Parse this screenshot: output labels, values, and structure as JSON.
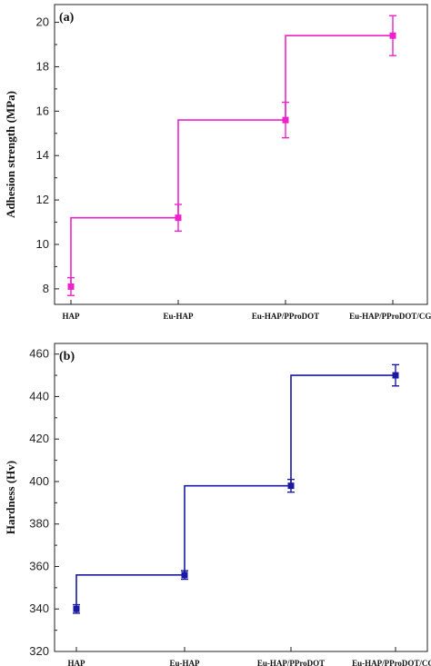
{
  "chart_data": [
    {
      "type": "line",
      "step": "post",
      "panel_label": "(a)",
      "ylabel": "Adhesion strength (MPa)",
      "categories": [
        "HAP",
        "Eu-HAP",
        "Eu-HAP/PProDOT",
        "Eu-HAP/PProDOT/CGF"
      ],
      "values": [
        8.1,
        11.2,
        15.6,
        19.4
      ],
      "errors": [
        0.4,
        0.6,
        0.8,
        0.9
      ],
      "ylim": [
        7.3,
        20.8
      ],
      "yticks": [
        8,
        10,
        12,
        14,
        16,
        18,
        20
      ],
      "color": "#ee22cc",
      "marker": "square"
    },
    {
      "type": "line",
      "step": "post",
      "panel_label": "(b)",
      "ylabel": "Hardness (Hv)",
      "categories": [
        "HAP",
        "Eu-HAP",
        "Eu-HAP/PProDOT",
        "Eu-HAP/PProDOT/CGF"
      ],
      "values": [
        340,
        356,
        398,
        450
      ],
      "errors": [
        2,
        2,
        3,
        5
      ],
      "ylim": [
        320,
        465
      ],
      "yticks": [
        320,
        340,
        360,
        380,
        400,
        420,
        440,
        460
      ],
      "color": "#1a1aa0",
      "marker": "square"
    }
  ]
}
